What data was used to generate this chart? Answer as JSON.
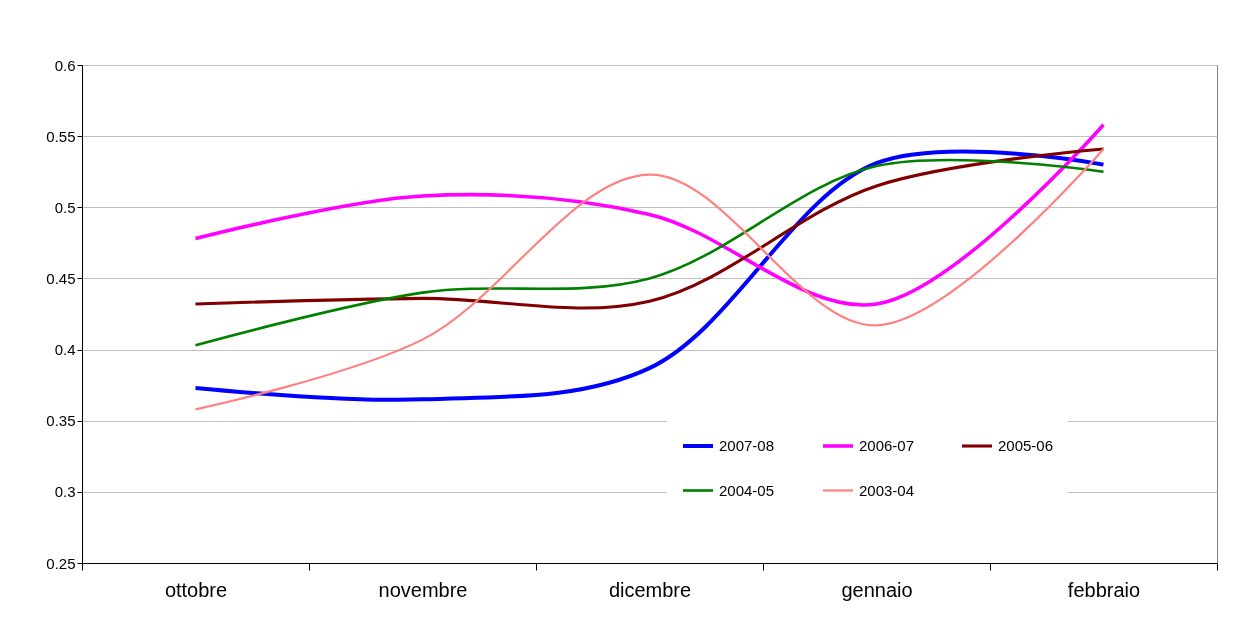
{
  "chart_data": {
    "type": "line",
    "categories": [
      "ottobre",
      "novembre",
      "dicembre",
      "gennaio",
      "febbraio"
    ],
    "series": [
      {
        "name": "2007-08",
        "color": "#0000ff",
        "values": [
          0.373,
          0.365,
          0.387,
          0.531,
          0.53
        ]
      },
      {
        "name": "2006-07",
        "color": "#ff00ff",
        "values": [
          0.478,
          0.508,
          0.495,
          0.432,
          0.558
        ]
      },
      {
        "name": "2005-06",
        "color": "#800000",
        "values": [
          0.432,
          0.436,
          0.434,
          0.515,
          0.541
        ]
      },
      {
        "name": "2004-05",
        "color": "#008000",
        "values": [
          0.403,
          0.44,
          0.45,
          0.529,
          0.525
        ]
      },
      {
        "name": "2003-04",
        "color": "#ff8080",
        "values": [
          0.358,
          0.407,
          0.523,
          0.417,
          0.541
        ]
      }
    ],
    "ylim": [
      0.25,
      0.6
    ],
    "yticks": [
      0.25,
      0.3,
      0.35,
      0.4,
      0.45,
      0.5,
      0.55,
      0.6
    ],
    "grid": "y",
    "legend": "bottom right",
    "marker": "none",
    "line_style": "solid"
  }
}
